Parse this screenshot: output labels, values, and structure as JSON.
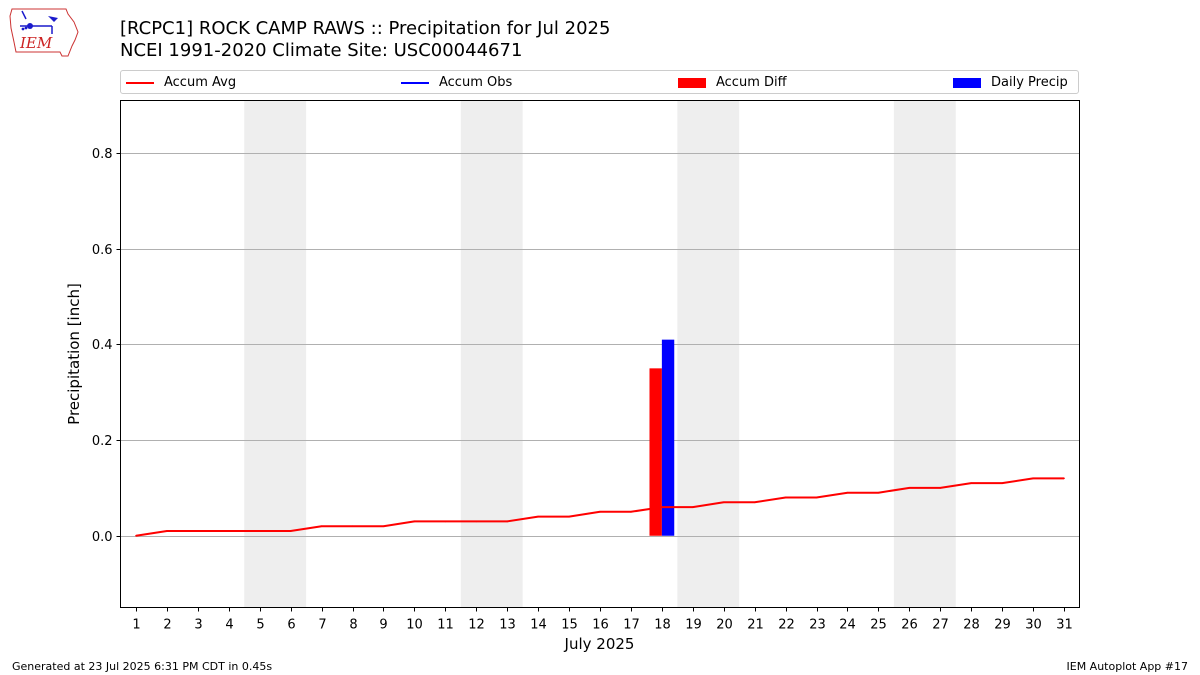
{
  "header": {
    "logo_text": "IEM",
    "title_line1": "[RCPC1] ROCK CAMP RAWS :: Precipitation for Jul 2025",
    "title_line2": "NCEI 1991-2020 Climate Site: USC00044671"
  },
  "footer": {
    "generated": "Generated at 23 Jul 2025 6:31 PM CDT in 0.45s",
    "app": "IEM Autoplot App #17"
  },
  "colors": {
    "avg": "#ff0000",
    "obs": "#0000ff",
    "diff": "#ff0000",
    "daily": "#0000ff",
    "weekend": "#eeeeee",
    "grid": "#b0b0b0"
  },
  "chart_data": {
    "type": "bar",
    "xlabel": "July 2025",
    "ylabel": "Precipitation [inch]",
    "ylim": [
      -0.15,
      0.91
    ],
    "xlim": [
      0.5,
      31.5
    ],
    "yticks": [
      0.0,
      0.2,
      0.4,
      0.6,
      0.8
    ],
    "ytick_labels": [
      "0.0",
      "0.2",
      "0.4",
      "0.6",
      "0.8"
    ],
    "days": [
      1,
      2,
      3,
      4,
      5,
      6,
      7,
      8,
      9,
      10,
      11,
      12,
      13,
      14,
      15,
      16,
      17,
      18,
      19,
      20,
      21,
      22,
      23,
      24,
      25,
      26,
      27,
      28,
      29,
      30,
      31
    ],
    "xtick_labels": [
      "1",
      "2",
      "3",
      "4",
      "5",
      "6",
      "7",
      "8",
      "9",
      "10",
      "11",
      "12",
      "13",
      "14",
      "15",
      "16",
      "17",
      "18",
      "19",
      "20",
      "21",
      "22",
      "23",
      "24",
      "25",
      "26",
      "27",
      "28",
      "29",
      "30",
      "31"
    ],
    "weekend_spans": [
      [
        4.5,
        6.5
      ],
      [
        11.5,
        13.5
      ],
      [
        18.5,
        20.5
      ],
      [
        25.5,
        27.5
      ]
    ],
    "grid": "horizontal",
    "legend_placement": "top",
    "legend": [
      {
        "label": "Accum Avg",
        "kind": "line"
      },
      {
        "label": "Accum Obs",
        "kind": "line"
      },
      {
        "label": "Accum Diff",
        "kind": "bar"
      },
      {
        "label": "Daily Precip",
        "kind": "bar"
      }
    ],
    "series": [
      {
        "name": "Accum Avg",
        "kind": "line",
        "values": [
          0.0,
          0.01,
          0.01,
          0.01,
          0.01,
          0.01,
          0.02,
          0.02,
          0.02,
          0.03,
          0.03,
          0.03,
          0.03,
          0.04,
          0.04,
          0.05,
          0.05,
          0.06,
          0.06,
          0.07,
          0.07,
          0.08,
          0.08,
          0.09,
          0.09,
          0.1,
          0.1,
          0.11,
          0.11,
          0.12,
          0.12
        ]
      },
      {
        "name": "Accum Diff",
        "kind": "bar",
        "points": [
          {
            "day": 18,
            "value": 0.35
          }
        ]
      },
      {
        "name": "Daily Precip",
        "kind": "bar",
        "points": [
          {
            "day": 18,
            "value": 0.41
          }
        ]
      }
    ]
  }
}
